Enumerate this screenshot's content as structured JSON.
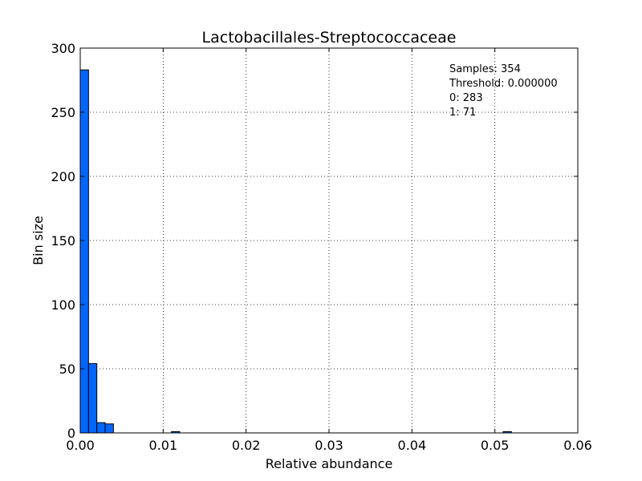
{
  "chart_data": {
    "type": "bar",
    "title": "Lactobacillales-Streptococcaceae",
    "xlabel": "Relative abundance",
    "ylabel": "Bin size",
    "xlim": [
      0.0,
      0.06
    ],
    "ylim": [
      0,
      300
    ],
    "grid": true,
    "x_ticks": [
      "0.00",
      "0.01",
      "0.02",
      "0.03",
      "0.04",
      "0.05",
      "0.06"
    ],
    "y_ticks": [
      "0",
      "50",
      "100",
      "150",
      "200",
      "250",
      "300"
    ],
    "bin_width": 0.001,
    "bins": [
      {
        "x": 0.0,
        "value": 283
      },
      {
        "x": 0.001,
        "value": 54
      },
      {
        "x": 0.002,
        "value": 8
      },
      {
        "x": 0.003,
        "value": 7
      },
      {
        "x": 0.011,
        "value": 1
      },
      {
        "x": 0.051,
        "value": 1
      }
    ],
    "bar_color": "#0066ff",
    "annotations": [
      "Samples: 354",
      "Threshold: 0.000000",
      "0: 283",
      "1: 71"
    ]
  }
}
